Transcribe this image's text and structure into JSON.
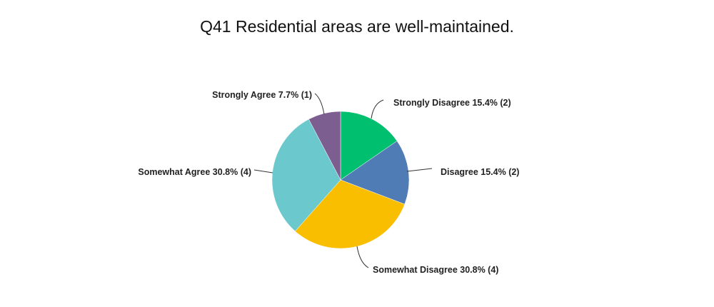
{
  "chart_data": {
    "type": "pie",
    "title": "Q41 Residential areas are well-maintained.",
    "slices": [
      {
        "name": "Strongly Disagree",
        "percent": 15.4,
        "count": 2,
        "color": "#00bf6f",
        "label": "Strongly Disagree 15.4% (2)"
      },
      {
        "name": "Disagree",
        "percent": 15.4,
        "count": 2,
        "color": "#507cb6",
        "label": "Disagree 15.4% (2)"
      },
      {
        "name": "Somewhat Disagree",
        "percent": 30.8,
        "count": 4,
        "color": "#f9be00",
        "label": "Somewhat Disagree 30.8% (4)"
      },
      {
        "name": "Somewhat Agree",
        "percent": 30.8,
        "count": 4,
        "color": "#6bc8cd",
        "label": "Somewhat Agree 30.8% (4)"
      },
      {
        "name": "Strongly Agree",
        "percent": 7.7,
        "count": 1,
        "color": "#7d5e90",
        "label": "Strongly Agree 7.7% (1)"
      }
    ]
  }
}
